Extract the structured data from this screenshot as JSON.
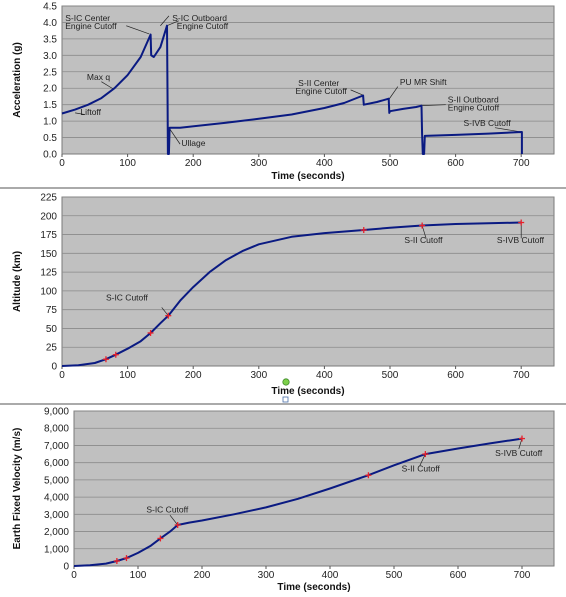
{
  "chart_data": [
    {
      "type": "line",
      "xlabel": "Time (seconds)",
      "ylabel": "Acceleration (g)",
      "xlim": [
        0,
        750
      ],
      "ylim": [
        0,
        4.5
      ],
      "xticks": [
        0,
        100,
        200,
        300,
        400,
        500,
        600,
        700
      ],
      "yticks": [
        0.0,
        0.5,
        1.0,
        1.5,
        2.0,
        2.5,
        3.0,
        3.5,
        4.0,
        4.5
      ],
      "ytick_decimals": 1,
      "grid": true,
      "x": [
        0,
        20,
        40,
        60,
        80,
        100,
        120,
        135,
        136,
        140,
        150,
        160,
        161,
        161.5,
        163,
        164,
        180,
        250,
        300,
        350,
        400,
        430,
        459,
        460,
        480,
        498,
        499,
        500,
        520,
        540,
        548,
        549,
        550,
        552,
        553,
        600,
        650,
        700,
        701,
        701
      ],
      "y": [
        1.23,
        1.35,
        1.5,
        1.7,
        2.0,
        2.4,
        2.95,
        3.63,
        3.0,
        2.95,
        3.25,
        3.9,
        1.5,
        0.0,
        0.0,
        0.8,
        0.8,
        0.95,
        1.07,
        1.2,
        1.4,
        1.55,
        1.78,
        1.5,
        1.58,
        1.68,
        1.25,
        1.3,
        1.37,
        1.43,
        1.47,
        0.6,
        0.0,
        0.0,
        0.55,
        0.58,
        0.62,
        0.67,
        0.67,
        0.0
      ],
      "annotations": [
        {
          "text": "S-IC Center",
          "x": 5,
          "y": 4.05
        },
        {
          "text": "Engine Cutoff",
          "x": 5,
          "y": 3.8
        },
        {
          "text": "S-IC Outboard",
          "x": 168,
          "y": 4.05
        },
        {
          "text": "Engine Cutoff",
          "x": 175,
          "y": 3.8
        },
        {
          "text": "Max q",
          "x": 38,
          "y": 2.25
        },
        {
          "text": "Liftoff",
          "x": 28,
          "y": 1.18
        },
        {
          "text": "Ullage",
          "x": 182,
          "y": 0.25
        },
        {
          "text": "S-II Center",
          "x": 360,
          "y": 2.07
        },
        {
          "text": "Engine Cutoff",
          "x": 356,
          "y": 1.82
        },
        {
          "text": "PU MR Shift",
          "x": 515,
          "y": 2.1
        },
        {
          "text": "S-II Outboard",
          "x": 588,
          "y": 1.57
        },
        {
          "text": "Engine Cutoff",
          "x": 588,
          "y": 1.32
        },
        {
          "text": "S-IVB Cutoff",
          "x": 612,
          "y": 0.85
        }
      ],
      "markers": []
    },
    {
      "type": "line",
      "xlabel": "Time (seconds)",
      "ylabel": "Altitude (km)",
      "xlim": [
        0,
        750
      ],
      "ylim": [
        0,
        225
      ],
      "xticks": [
        0,
        100,
        200,
        300,
        400,
        500,
        600,
        700
      ],
      "yticks": [
        0,
        25,
        50,
        75,
        100,
        125,
        150,
        175,
        200,
        225
      ],
      "ytick_decimals": 0,
      "grid": true,
      "x": [
        0,
        25,
        50,
        67,
        82,
        100,
        120,
        135,
        150,
        162,
        180,
        200,
        225,
        250,
        275,
        300,
        350,
        400,
        460,
        500,
        549,
        600,
        650,
        700
      ],
      "y": [
        0,
        1,
        4,
        9,
        15,
        23,
        33,
        44,
        57,
        67,
        87,
        105,
        125,
        141,
        153,
        162,
        172,
        177,
        181,
        184,
        187,
        189,
        190,
        191
      ],
      "annotations": [
        {
          "text": "S-IC Cutoff",
          "x": 67,
          "y": 87
        },
        {
          "text": "S-II Cutoff",
          "x": 522,
          "y": 164
        },
        {
          "text": "S-IVB Cutoff",
          "x": 663,
          "y": 164
        }
      ],
      "markers": [
        [
          67,
          9
        ],
        [
          82,
          15
        ],
        [
          135,
          44
        ],
        [
          162,
          67
        ],
        [
          460,
          181
        ],
        [
          549,
          187
        ],
        [
          700,
          191
        ]
      ]
    },
    {
      "type": "line",
      "xlabel": "Time (seconds)",
      "ylabel": "Earth Fixed Velocity (m/s)",
      "xlim": [
        0,
        750
      ],
      "ylim": [
        0,
        9000
      ],
      "xticks": [
        0,
        100,
        200,
        300,
        400,
        500,
        600,
        700
      ],
      "yticks": [
        0,
        1000,
        2000,
        3000,
        4000,
        5000,
        6000,
        7000,
        8000,
        9000
      ],
      "ytick_decimals": 0,
      "grid": true,
      "x": [
        0,
        25,
        50,
        67,
        82,
        100,
        120,
        135,
        150,
        162,
        180,
        200,
        250,
        300,
        350,
        400,
        460,
        500,
        549,
        600,
        650,
        700
      ],
      "y": [
        0,
        40,
        140,
        290,
        460,
        760,
        1180,
        1600,
        2000,
        2380,
        2520,
        2640,
        3000,
        3400,
        3900,
        4500,
        5270,
        5850,
        6500,
        6820,
        7120,
        7400
      ],
      "annotations": [
        {
          "text": "S-IC Cutoff",
          "x": 113,
          "y": 3100
        },
        {
          "text": "S-II Cutoff",
          "x": 512,
          "y": 5500
        },
        {
          "text": "S-IVB Cutoff",
          "x": 658,
          "y": 6400
        }
      ],
      "markers": [
        [
          67,
          290
        ],
        [
          82,
          460
        ],
        [
          135,
          1600
        ],
        [
          162,
          2380
        ],
        [
          460,
          5270
        ],
        [
          549,
          6500
        ],
        [
          700,
          7400
        ]
      ]
    }
  ]
}
